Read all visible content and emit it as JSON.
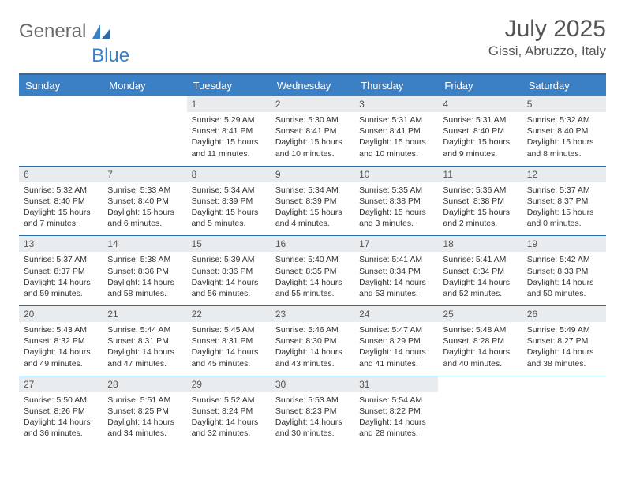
{
  "brand": {
    "part1": "General",
    "part2": "Blue"
  },
  "title": "July 2025",
  "location": "Gissi, Abruzzo, Italy",
  "colors": {
    "header_bg": "#3b7fc4",
    "header_border": "#2e6aa8",
    "daynum_bg": "#e9ecef",
    "text": "#333333",
    "title_text": "#555555"
  },
  "weekdays": [
    "Sunday",
    "Monday",
    "Tuesday",
    "Wednesday",
    "Thursday",
    "Friday",
    "Saturday"
  ],
  "first_weekday_index": 2,
  "month_days": 31,
  "days": {
    "1": {
      "sunrise": "5:29 AM",
      "sunset": "8:41 PM",
      "daylight": "15 hours and 11 minutes."
    },
    "2": {
      "sunrise": "5:30 AM",
      "sunset": "8:41 PM",
      "daylight": "15 hours and 10 minutes."
    },
    "3": {
      "sunrise": "5:31 AM",
      "sunset": "8:41 PM",
      "daylight": "15 hours and 10 minutes."
    },
    "4": {
      "sunrise": "5:31 AM",
      "sunset": "8:40 PM",
      "daylight": "15 hours and 9 minutes."
    },
    "5": {
      "sunrise": "5:32 AM",
      "sunset": "8:40 PM",
      "daylight": "15 hours and 8 minutes."
    },
    "6": {
      "sunrise": "5:32 AM",
      "sunset": "8:40 PM",
      "daylight": "15 hours and 7 minutes."
    },
    "7": {
      "sunrise": "5:33 AM",
      "sunset": "8:40 PM",
      "daylight": "15 hours and 6 minutes."
    },
    "8": {
      "sunrise": "5:34 AM",
      "sunset": "8:39 PM",
      "daylight": "15 hours and 5 minutes."
    },
    "9": {
      "sunrise": "5:34 AM",
      "sunset": "8:39 PM",
      "daylight": "15 hours and 4 minutes."
    },
    "10": {
      "sunrise": "5:35 AM",
      "sunset": "8:38 PM",
      "daylight": "15 hours and 3 minutes."
    },
    "11": {
      "sunrise": "5:36 AM",
      "sunset": "8:38 PM",
      "daylight": "15 hours and 2 minutes."
    },
    "12": {
      "sunrise": "5:37 AM",
      "sunset": "8:37 PM",
      "daylight": "15 hours and 0 minutes."
    },
    "13": {
      "sunrise": "5:37 AM",
      "sunset": "8:37 PM",
      "daylight": "14 hours and 59 minutes."
    },
    "14": {
      "sunrise": "5:38 AM",
      "sunset": "8:36 PM",
      "daylight": "14 hours and 58 minutes."
    },
    "15": {
      "sunrise": "5:39 AM",
      "sunset": "8:36 PM",
      "daylight": "14 hours and 56 minutes."
    },
    "16": {
      "sunrise": "5:40 AM",
      "sunset": "8:35 PM",
      "daylight": "14 hours and 55 minutes."
    },
    "17": {
      "sunrise": "5:41 AM",
      "sunset": "8:34 PM",
      "daylight": "14 hours and 53 minutes."
    },
    "18": {
      "sunrise": "5:41 AM",
      "sunset": "8:34 PM",
      "daylight": "14 hours and 52 minutes."
    },
    "19": {
      "sunrise": "5:42 AM",
      "sunset": "8:33 PM",
      "daylight": "14 hours and 50 minutes."
    },
    "20": {
      "sunrise": "5:43 AM",
      "sunset": "8:32 PM",
      "daylight": "14 hours and 49 minutes."
    },
    "21": {
      "sunrise": "5:44 AM",
      "sunset": "8:31 PM",
      "daylight": "14 hours and 47 minutes."
    },
    "22": {
      "sunrise": "5:45 AM",
      "sunset": "8:31 PM",
      "daylight": "14 hours and 45 minutes."
    },
    "23": {
      "sunrise": "5:46 AM",
      "sunset": "8:30 PM",
      "daylight": "14 hours and 43 minutes."
    },
    "24": {
      "sunrise": "5:47 AM",
      "sunset": "8:29 PM",
      "daylight": "14 hours and 41 minutes."
    },
    "25": {
      "sunrise": "5:48 AM",
      "sunset": "8:28 PM",
      "daylight": "14 hours and 40 minutes."
    },
    "26": {
      "sunrise": "5:49 AM",
      "sunset": "8:27 PM",
      "daylight": "14 hours and 38 minutes."
    },
    "27": {
      "sunrise": "5:50 AM",
      "sunset": "8:26 PM",
      "daylight": "14 hours and 36 minutes."
    },
    "28": {
      "sunrise": "5:51 AM",
      "sunset": "8:25 PM",
      "daylight": "14 hours and 34 minutes."
    },
    "29": {
      "sunrise": "5:52 AM",
      "sunset": "8:24 PM",
      "daylight": "14 hours and 32 minutes."
    },
    "30": {
      "sunrise": "5:53 AM",
      "sunset": "8:23 PM",
      "daylight": "14 hours and 30 minutes."
    },
    "31": {
      "sunrise": "5:54 AM",
      "sunset": "8:22 PM",
      "daylight": "14 hours and 28 minutes."
    }
  },
  "labels": {
    "sunrise": "Sunrise: ",
    "sunset": "Sunset: ",
    "daylight": "Daylight: "
  }
}
